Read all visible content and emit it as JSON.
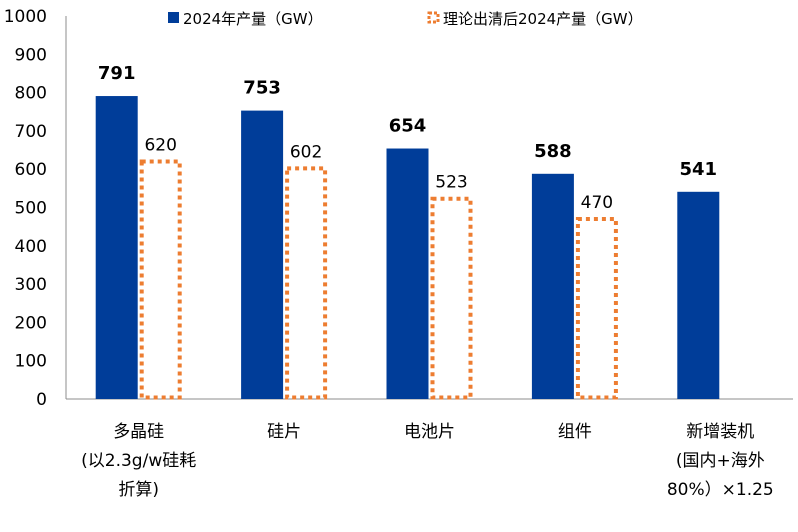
{
  "chart_data": {
    "type": "bar",
    "title": "",
    "xlabel": "",
    "ylabel": "",
    "ylim": [
      0,
      1000
    ],
    "yticks": [
      "0",
      "100",
      "200",
      "300",
      "400",
      "500",
      "600",
      "700",
      "800",
      "900",
      "1000"
    ],
    "grid": false,
    "legend_position": "top",
    "categories": [
      [
        "多晶硅",
        "(以2.3g/w硅耗",
        "折算)"
      ],
      [
        "硅片"
      ],
      [
        "电池片"
      ],
      [
        "组件"
      ],
      [
        "新增装机",
        "(国内+海外",
        "80%）×1.25"
      ]
    ],
    "series": [
      {
        "name": "2024年产量（GW）",
        "style": "solid",
        "color": "#003d99",
        "values": [
          791,
          753,
          654,
          588,
          541
        ],
        "labels": [
          "791",
          "753",
          "654",
          "588",
          "541"
        ]
      },
      {
        "name": "理论出清后2024产量（GW）",
        "style": "dashed-outline",
        "color": "#ed7d31",
        "values": [
          620,
          602,
          523,
          470,
          null
        ],
        "labels": [
          "620",
          "602",
          "523",
          "470",
          ""
        ]
      }
    ]
  }
}
